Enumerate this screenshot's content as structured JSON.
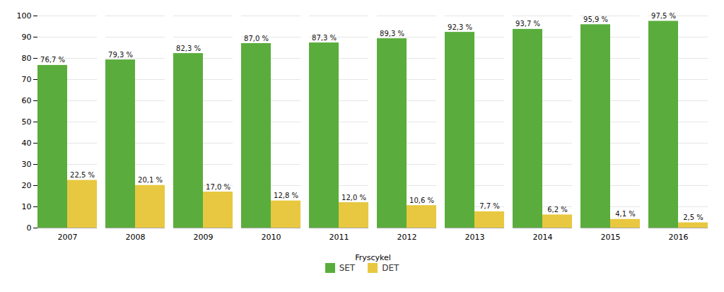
{
  "chart_data": {
    "type": "bar",
    "categories": [
      "2007",
      "2008",
      "2009",
      "2010",
      "2011",
      "2012",
      "2013",
      "2014",
      "2015",
      "2016"
    ],
    "series": [
      {
        "name": "SET",
        "color": "#5aad3c",
        "values": [
          76.7,
          79.3,
          82.3,
          87.0,
          87.3,
          89.3,
          92.3,
          93.7,
          95.9,
          97.5
        ],
        "value_labels": [
          "76,7 %",
          "79,3 %",
          "82,3 %",
          "87,0 %",
          "87,3 %",
          "89,3 %",
          "92,3 %",
          "93,7 %",
          "95,9 %",
          "97,5 %"
        ]
      },
      {
        "name": "DET",
        "color": "#e8c840",
        "values": [
          22.5,
          20.1,
          17.0,
          12.8,
          12.0,
          10.6,
          7.7,
          6.2,
          4.1,
          2.5
        ],
        "value_labels": [
          "22,5 %",
          "20,1 %",
          "17,0 %",
          "12,8 %",
          "12,0 %",
          "10,6 %",
          "7,7 %",
          "6,2 %",
          "4,1 %",
          "2,5 %"
        ]
      }
    ],
    "xlabel": "Fryscykel",
    "ylim": [
      0,
      100
    ],
    "yticks": [
      0,
      10,
      20,
      30,
      40,
      50,
      60,
      70,
      80,
      90,
      100
    ],
    "grid": true,
    "data_labels": true,
    "legend": "bottom"
  }
}
